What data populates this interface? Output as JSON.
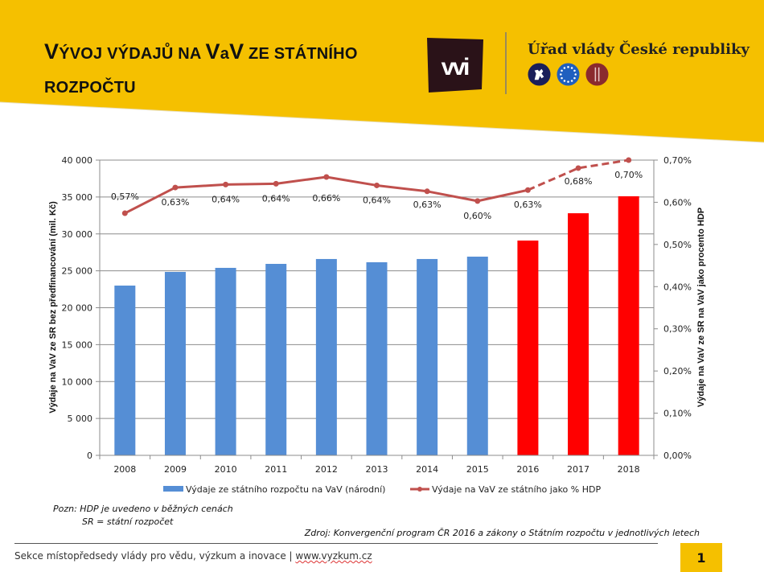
{
  "header": {
    "title_parts": [
      {
        "text": "V",
        "size": "big"
      },
      {
        "text": "ÝVOJ VÝDAJŮ NA ",
        "size": "small"
      },
      {
        "text": "V",
        "size": "big"
      },
      {
        "text": "a",
        "size": "small"
      },
      {
        "text": "V",
        "size": "big"
      },
      {
        "text": " ZE STÁTNÍHO",
        "size": "small"
      }
    ],
    "title_line2": "ROZPOČTU",
    "logo_text": "vvi",
    "government_name": "Úřad vlády České republiky",
    "colors": {
      "header_bg": "#f5c000",
      "logo_bg": "#2a1218",
      "emblem1": "#1a1f5a",
      "emblem2": "#1f5fbf",
      "emblem3": "#8a2a2e"
    }
  },
  "chart_data": {
    "type": "bar+line",
    "categories": [
      "2008",
      "2009",
      "2010",
      "2011",
      "2012",
      "2013",
      "2014",
      "2015",
      "2016",
      "2017",
      "2018"
    ],
    "series": [
      {
        "name": "Výdaje ze státního rozpočtu na VaV (národní)",
        "type": "bar",
        "axis": "left",
        "values": [
          23000,
          24850,
          25400,
          25940,
          26600,
          26160,
          26600,
          26920,
          29100,
          32800,
          35100
        ],
        "colors": [
          "#558ed5",
          "#558ed5",
          "#558ed5",
          "#558ed5",
          "#558ed5",
          "#558ed5",
          "#558ed5",
          "#558ed5",
          "#ff0000",
          "#ff0000",
          "#ff0000"
        ]
      },
      {
        "name": "Výdaje na VaV ze státního jako % HDP",
        "type": "line",
        "axis": "right",
        "color": "#c0504d",
        "values": [
          0.574,
          0.635,
          0.642,
          0.644,
          0.66,
          0.64,
          0.626,
          0.603,
          0.629,
          0.681,
          0.7
        ],
        "labels": [
          "0,57%",
          "0,63%",
          "0,64%",
          "0,64%",
          "0,66%",
          "0,64%",
          "0,63%",
          "0,60%",
          "0,63%",
          "0,68%",
          "0,70%"
        ],
        "dashed_from_index": 8
      }
    ],
    "y_left": {
      "label": "Výdaje na VaV ze  SR bez předfinancování (mil. Kč)",
      "range": [
        0,
        40000
      ],
      "ticks": [
        0,
        5000,
        10000,
        15000,
        20000,
        25000,
        30000,
        35000,
        40000
      ],
      "tick_labels": [
        "0",
        "5 000",
        "10 000",
        "15 000",
        "20 000",
        "25 000",
        "30 000",
        "35 000",
        "40 000"
      ]
    },
    "y_right": {
      "label": "Výdaje na VaV  ze SR na VaV jako procento HDP",
      "range": [
        0,
        0.7
      ],
      "ticks": [
        0,
        0.1,
        0.2,
        0.3,
        0.4,
        0.5,
        0.6,
        0.7
      ],
      "tick_labels": [
        "0,00%",
        "0,10%",
        "0,20%",
        "0,30%",
        "0,40%",
        "0,50%",
        "0,60%",
        "0,70%"
      ]
    },
    "grid": true,
    "legend": {
      "position": "bottom"
    }
  },
  "notes": {
    "line1": "Pozn:  HDP je uvedeno v běžných cenách",
    "line2": "SR = státní rozpočet",
    "source": "Zdroj: Konvergenční program ČR 2016 a zákony o Státním rozpočtu v jednotlivých letech"
  },
  "footer": {
    "text": "Sekce místopředsedy vlády pro vědu, výzkum a inovace | ",
    "url": "www.vyzkum.cz",
    "page_number": "1"
  }
}
